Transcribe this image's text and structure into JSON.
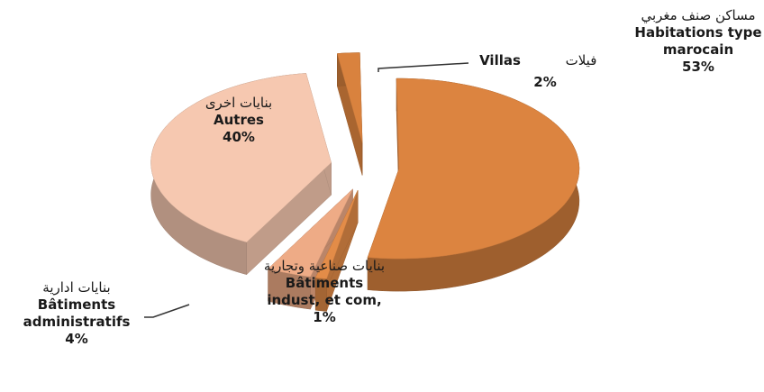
{
  "chart_data": {
    "type": "pie3d",
    "categories": [
      "Villas",
      "Habitations type marocain",
      "Bâtiments indust, et com,",
      "Bâtiments administratifs",
      "Autres"
    ],
    "arabic_labels": [
      "فيلات",
      "مساكن صنف مغربي",
      "بنايات صناعية وتجارية",
      "بنايات ادارية",
      "بنايات اخرى"
    ],
    "values": [
      2,
      53,
      1,
      4,
      40
    ],
    "value_labels": [
      "2%",
      "53%",
      "1%",
      "4%",
      "40%"
    ],
    "colors": [
      "#d9823e",
      "#dc8440",
      "#e38c48",
      "#eeab86",
      "#f6c8b0"
    ]
  }
}
